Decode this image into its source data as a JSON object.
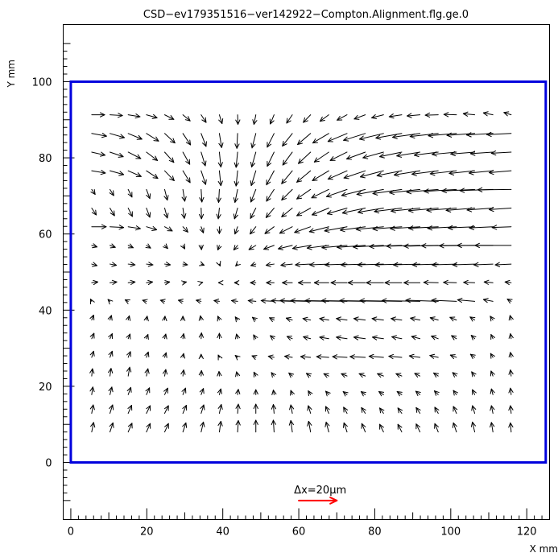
{
  "chart_data": {
    "type": "vector-field",
    "title": "CSD−ev179351516−ver142922−Compton.Alignment.flg.ge.0",
    "xlabel": "X mm",
    "ylabel": "Y mm",
    "xlim": [
      -2,
      126
    ],
    "ylim": [
      -15,
      115
    ],
    "x_ticks": [
      0,
      20,
      40,
      60,
      80,
      100,
      120
    ],
    "y_ticks": [
      0,
      20,
      40,
      60,
      80,
      100
    ],
    "grid": false,
    "detector_outline": {
      "x": [
        0,
        125
      ],
      "y": [
        0,
        100
      ],
      "color": "#0000dd"
    },
    "scale_arrow": {
      "label": "Δx=20μm",
      "x": 60,
      "y": -10,
      "dx": 10,
      "color": "#ff0000"
    },
    "arrow_color": "#000000",
    "grid_x": [
      5.5,
      10.3,
      15.1,
      19.9,
      24.7,
      29.5,
      34.3,
      39.1,
      43.9,
      48.7,
      53.5,
      58.3,
      63.1,
      67.9,
      72.7,
      77.5,
      82.3,
      87.1,
      91.9,
      96.7,
      101.5,
      106.3,
      111.1,
      115.9
    ],
    "grid_y": [
      8,
      12.9,
      17.8,
      22.7,
      27.6,
      32.5,
      37.4,
      42.3,
      47.2,
      52.1,
      57,
      61.9,
      66.8,
      71.7,
      76.6,
      81.5,
      86.4,
      91.3
    ],
    "rows": [
      {
        "y": 8,
        "dx": [
          0.5,
          0.8,
          1.0,
          1.0,
          1.0,
          0.8,
          0.6,
          0.4,
          0.2,
          0,
          -0.2,
          -0.4,
          -0.5,
          -0.7,
          -0.8,
          -0.9,
          -1.0,
          -1.0,
          -1.0,
          -0.9,
          -0.8,
          -0.6,
          -0.4,
          -0.2
        ],
        "dy": [
          2.5,
          2.4,
          2.3,
          2.2,
          2.2,
          2.4,
          2.6,
          2.8,
          3.0,
          3.1,
          3.1,
          3.0,
          2.8,
          2.6,
          2.4,
          2.2,
          2.0,
          2.0,
          2.1,
          2.2,
          2.4,
          2.6,
          2.5,
          2.4
        ]
      },
      {
        "y": 12.9,
        "dx": [
          0.4,
          0.7,
          0.9,
          1.0,
          1.0,
          0.9,
          0.7,
          0.5,
          0.2,
          0,
          -0.2,
          -0.4,
          -0.6,
          -0.8,
          -0.9,
          -1.0,
          -1.0,
          -1.0,
          -1.0,
          -0.9,
          -0.8,
          -0.6,
          -0.4,
          -0.2
        ],
        "dy": [
          2.2,
          2.2,
          2.1,
          2.0,
          2.0,
          2.1,
          2.2,
          2.3,
          2.4,
          2.4,
          2.3,
          2.2,
          2.0,
          1.8,
          1.6,
          1.5,
          1.4,
          1.4,
          1.5,
          1.6,
          1.8,
          2.0,
          2.0,
          2.0
        ]
      },
      {
        "y": 17.8,
        "dx": [
          0.3,
          0.5,
          0.7,
          0.8,
          0.8,
          0.7,
          0.6,
          0.4,
          0.2,
          0,
          -0.2,
          -0.4,
          -0.6,
          -0.8,
          -1.0,
          -1.1,
          -1.2,
          -1.2,
          -1.1,
          -1.0,
          -0.8,
          -0.6,
          -0.4,
          -0.2
        ],
        "dy": [
          2.0,
          2.0,
          1.9,
          1.8,
          1.7,
          1.7,
          1.6,
          1.5,
          1.4,
          1.3,
          1.2,
          1.1,
          1.0,
          0.9,
          0.8,
          0.8,
          0.8,
          0.8,
          0.9,
          1.0,
          1.1,
          1.3,
          1.5,
          1.7
        ]
      },
      {
        "y": 22.7,
        "dx": [
          0.2,
          0.3,
          0.4,
          0.4,
          0.3,
          0.2,
          0.1,
          -0.1,
          -0.3,
          -0.5,
          -0.7,
          -0.9,
          -1.1,
          -1.3,
          -1.5,
          -1.6,
          -1.6,
          -1.5,
          -1.4,
          -1.2,
          -1.0,
          -0.8,
          -0.5,
          -0.2
        ],
        "dy": [
          1.9,
          2.0,
          2.3,
          1.9,
          1.7,
          1.6,
          1.4,
          1.2,
          1.1,
          1.0,
          0.9,
          0.8,
          0.7,
          0.6,
          0.6,
          0.6,
          0.6,
          0.6,
          0.7,
          0.8,
          0.9,
          1.1,
          1.3,
          1.6
        ]
      },
      {
        "y": 27.6,
        "dx": [
          0.5,
          0.6,
          0.6,
          0.5,
          0.4,
          0.2,
          0,
          -0.3,
          -0.6,
          -1.0,
          -1.5,
          -2.0,
          -2.6,
          -3.2,
          -3.8,
          -4.0,
          -3.8,
          -3.4,
          -2.8,
          -2.2,
          -1.6,
          -1.1,
          -0.6,
          -0.2
        ],
        "dy": [
          1.6,
          1.6,
          1.5,
          1.4,
          1.2,
          1.0,
          0.8,
          0.6,
          0.5,
          0.4,
          0.3,
          0.3,
          0.2,
          0.2,
          0.2,
          0.2,
          0.3,
          0.3,
          0.4,
          0.5,
          0.6,
          0.8,
          1.0,
          1.3
        ]
      },
      {
        "y": 32.5,
        "dx": [
          0.6,
          0.6,
          0.5,
          0.4,
          0.3,
          0.2,
          0.1,
          0,
          -0.3,
          -0.6,
          -1.0,
          -1.4,
          -1.9,
          -2.4,
          -2.8,
          -3.0,
          -2.9,
          -2.6,
          -2.2,
          -1.8,
          -1.3,
          -0.9,
          -0.5,
          -0.2
        ],
        "dy": [
          1.4,
          1.3,
          1.2,
          1.1,
          1.2,
          1.3,
          1.5,
          1.4,
          1.2,
          1.0,
          0.8,
          0.6,
          0.5,
          0.4,
          0.4,
          0.4,
          0.4,
          0.5,
          0.6,
          0.7,
          0.8,
          0.9,
          1.1,
          1.3
        ]
      },
      {
        "y": 37.4,
        "dx": [
          0.5,
          0.4,
          0.3,
          0.2,
          0.1,
          0,
          -0.2,
          -0.4,
          -0.6,
          -0.9,
          -1.2,
          -1.6,
          -2.0,
          -2.4,
          -2.8,
          -3.0,
          -3.0,
          -2.8,
          -2.5,
          -2.1,
          -1.7,
          -1.2,
          -0.7,
          -0.3
        ],
        "dy": [
          1.3,
          1.2,
          1.1,
          1.0,
          1.0,
          1.0,
          1.1,
          1.0,
          0.8,
          0.7,
          0.6,
          0.5,
          0.4,
          0.4,
          0.4,
          0.4,
          0.4,
          0.4,
          0.5,
          0.6,
          0.7,
          0.8,
          1.0,
          1.2
        ]
      },
      {
        "y": 42.3,
        "dx": [
          -0.3,
          -0.5,
          -0.8,
          -1.0,
          -1.1,
          -1.2,
          -1.3,
          -1.4,
          -1.6,
          -2.0,
          -3.4,
          -5.5,
          -8.0,
          -10.0,
          -11.0,
          -11.5,
          -11.5,
          -11.0,
          -10.0,
          -8.5,
          -6.5,
          -4.5,
          -2.5,
          -1.0
        ],
        "dy": [
          0.6,
          0.5,
          0.4,
          0.3,
          0.3,
          0.3,
          0.3,
          0.2,
          0.2,
          0.2,
          0.2,
          0.2,
          0.2,
          0.2,
          0.2,
          0.2,
          0.2,
          0.2,
          0.2,
          0.3,
          0.3,
          0.4,
          0.5,
          0.6
        ]
      },
      {
        "y": 47.2,
        "dx": [
          1.6,
          1.8,
          1.8,
          1.6,
          1.3,
          0.9,
          0.4,
          -0.2,
          -0.8,
          -1.4,
          -2.0,
          -2.6,
          -3.2,
          -3.8,
          -4.2,
          -4.5,
          -4.5,
          -4.4,
          -4.2,
          -3.8,
          -3.4,
          -2.9,
          -2.3,
          -1.6
        ],
        "dy": [
          0.2,
          0.2,
          0.2,
          0.2,
          0.2,
          0.2,
          0.1,
          0,
          0,
          0,
          0,
          0,
          0,
          0,
          0,
          0,
          0,
          0,
          0,
          0.1,
          0.1,
          0.1,
          0.2,
          0.2
        ]
      },
      {
        "y": 52.1,
        "dx": [
          1.4,
          1.7,
          1.8,
          1.7,
          1.5,
          1.2,
          0.8,
          0.2,
          -0.5,
          -1.3,
          -2.1,
          -3.0,
          -4.0,
          -5.0,
          -5.8,
          -6.4,
          -6.8,
          -7.0,
          -7.0,
          -6.8,
          -6.4,
          -5.8,
          -5.0,
          -4.2
        ],
        "dy": [
          -0.4,
          -0.3,
          -0.2,
          -0.2,
          -0.2,
          -0.2,
          -0.3,
          -0.5,
          -0.5,
          -0.4,
          -0.3,
          -0.3,
          -0.2,
          -0.2,
          -0.2,
          -0.2,
          -0.2,
          -0.2,
          -0.2,
          -0.2,
          -0.2,
          -0.2,
          -0.2,
          -0.2
        ]
      },
      {
        "y": 57,
        "dx": [
          1.4,
          1.4,
          1.3,
          1.1,
          0.8,
          0.5,
          0.1,
          -0.4,
          -1.0,
          -1.8,
          -2.7,
          -3.7,
          -4.7,
          -5.7,
          -6.6,
          -7.4,
          -8.0,
          -8.5,
          -8.8,
          -9.0,
          -9.2,
          -9.3,
          -9.4,
          -9.5
        ],
        "dy": [
          -0.4,
          -0.5,
          -0.6,
          -0.7,
          -0.8,
          -0.9,
          -1.1,
          -1.2,
          -1.2,
          -1.1,
          -1.0,
          -0.9,
          -0.8,
          -0.7,
          -0.6,
          -0.5,
          -0.4,
          -0.3,
          -0.2,
          -0.2,
          -0.1,
          -0.1,
          0,
          0
        ]
      },
      {
        "y": 61.9,
        "dx": [
          3.8,
          3.6,
          3.2,
          2.7,
          2.0,
          1.3,
          0.6,
          0,
          -0.7,
          -1.5,
          -2.4,
          -3.3,
          -4.2,
          -5.1,
          -5.9,
          -6.6,
          -7.2,
          -7.6,
          -7.8,
          -7.8,
          -7.6,
          -7.0,
          -6.2,
          -5.0
        ],
        "dy": [
          0,
          -0.2,
          -0.5,
          -0.8,
          -1.1,
          -1.4,
          -1.6,
          -1.8,
          -1.9,
          -1.9,
          -1.8,
          -1.7,
          -1.5,
          -1.3,
          -1.1,
          -0.9,
          -0.7,
          -0.6,
          -0.5,
          -0.4,
          -0.4,
          -0.3,
          -0.3,
          -0.2
        ]
      },
      {
        "y": 66.8,
        "dx": [
          1.2,
          1.2,
          1.1,
          0.9,
          0.7,
          0.4,
          0.1,
          -0.3,
          -0.8,
          -1.4,
          -2.1,
          -2.8,
          -3.6,
          -4.4,
          -5.2,
          -6.0,
          -6.7,
          -7.2,
          -7.6,
          -7.8,
          -7.8,
          -7.5,
          -6.8,
          -5.8
        ],
        "dy": [
          -1.8,
          -2.0,
          -2.2,
          -2.4,
          -2.6,
          -2.7,
          -2.8,
          -2.8,
          -2.8,
          -2.7,
          -2.5,
          -2.3,
          -2.0,
          -1.8,
          -1.5,
          -1.3,
          -1.1,
          -0.9,
          -0.8,
          -0.7,
          -0.6,
          -0.6,
          -0.5,
          -0.4
        ]
      },
      {
        "y": 71.7,
        "dx": [
          0.9,
          1.0,
          1.0,
          0.9,
          0.7,
          0.5,
          0.2,
          -0.2,
          -0.7,
          -1.3,
          -2.0,
          -2.8,
          -3.6,
          -4.5,
          -5.4,
          -6.2,
          -7.0,
          -7.6,
          -8.0,
          -8.3,
          -8.5,
          -8.6,
          -8.7,
          -8.8
        ],
        "dy": [
          -1.3,
          -1.6,
          -2.0,
          -2.4,
          -2.8,
          -3.1,
          -3.3,
          -3.4,
          -3.4,
          -3.3,
          -3.1,
          -2.8,
          -2.5,
          -2.2,
          -1.9,
          -1.6,
          -1.3,
          -1.1,
          -0.9,
          -0.7,
          -0.5,
          -0.4,
          -0.3,
          -0.1
        ]
      },
      {
        "y": 76.6,
        "dx": [
          3.6,
          3.6,
          3.4,
          3.0,
          2.5,
          1.9,
          1.2,
          0.4,
          -0.4,
          -1.2,
          -2.0,
          -2.8,
          -3.6,
          -4.3,
          -5.0,
          -5.6,
          -6.1,
          -6.5,
          -6.8,
          -6.9,
          -6.9,
          -6.7,
          -6.3,
          -5.8
        ],
        "dy": [
          -0.6,
          -1.0,
          -1.5,
          -2.0,
          -2.6,
          -3.1,
          -3.6,
          -3.9,
          -4.0,
          -3.9,
          -3.7,
          -3.4,
          -3.0,
          -2.6,
          -2.2,
          -1.9,
          -1.6,
          -1.3,
          -1.1,
          -0.9,
          -0.8,
          -0.7,
          -0.6,
          -0.5
        ]
      },
      {
        "y": 81.5,
        "dx": [
          3.5,
          3.5,
          3.3,
          2.9,
          2.4,
          1.8,
          1.1,
          0.4,
          -0.4,
          -1.1,
          -1.8,
          -2.5,
          -3.2,
          -3.8,
          -4.4,
          -4.9,
          -5.4,
          -5.8,
          -6.1,
          -6.3,
          -6.4,
          -6.3,
          -5.9,
          -5.2
        ],
        "dy": [
          -0.8,
          -1.2,
          -1.7,
          -2.2,
          -2.7,
          -3.2,
          -3.6,
          -3.9,
          -4.0,
          -3.9,
          -3.7,
          -3.4,
          -3.0,
          -2.6,
          -2.2,
          -1.8,
          -1.5,
          -1.2,
          -1.0,
          -0.8,
          -0.6,
          -0.5,
          -0.4,
          -0.3
        ]
      },
      {
        "y": 86.4,
        "dx": [
          3.9,
          3.8,
          3.6,
          3.2,
          2.7,
          2.0,
          1.3,
          0.6,
          -0.2,
          -1.0,
          -1.8,
          -2.6,
          -3.4,
          -4.2,
          -5.0,
          -5.7,
          -6.3,
          -6.8,
          -7.2,
          -7.4,
          -7.4,
          -7.3,
          -6.9,
          -6.4
        ],
        "dy": [
          -0.7,
          -1.1,
          -1.5,
          -2.0,
          -2.5,
          -3.0,
          -3.4,
          -3.7,
          -3.9,
          -3.8,
          -3.6,
          -3.3,
          -2.9,
          -2.5,
          -2.1,
          -1.8,
          -1.5,
          -1.2,
          -1.0,
          -0.8,
          -0.6,
          -0.5,
          -0.4,
          -0.3
        ]
      },
      {
        "y": 91.3,
        "dx": [
          3.4,
          3.3,
          3.1,
          2.8,
          2.4,
          1.9,
          1.3,
          0.7,
          0.1,
          -0.5,
          -1.0,
          -1.5,
          -1.9,
          -2.3,
          -2.6,
          -2.9,
          -3.1,
          -3.3,
          -3.4,
          -3.4,
          -3.3,
          -3.0,
          -2.5,
          -1.9
        ],
        "dy": [
          0,
          -0.2,
          -0.5,
          -0.8,
          -1.2,
          -1.6,
          -2.0,
          -2.3,
          -2.5,
          -2.5,
          -2.4,
          -2.2,
          -2.0,
          -1.7,
          -1.4,
          -1.1,
          -0.8,
          -0.5,
          -0.3,
          -0.1,
          0.1,
          0.3,
          0.5,
          0.6
        ]
      }
    ]
  }
}
